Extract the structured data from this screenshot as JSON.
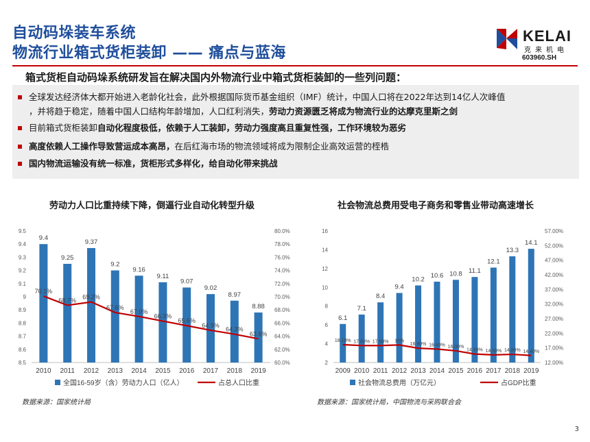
{
  "header": {
    "title_line1": "自动码垛装车系统",
    "title_line2": "物流行业箱式货柜装卸 —— 痛点与蓝海",
    "logo_text": "KELAI",
    "logo_sub": "克来机电",
    "ticker": "603960.SH"
  },
  "intro": "箱式货柜自动码垛系统研发旨在解决国内外物流行业中箱式货柜装卸的一些列问题：",
  "bullets": [
    {
      "line1_a": "全球发达经济体大都开始进入老龄化社会，此外根据国际货币基金组织（IMF）统计，中国人口将在2022年达到14亿人次峰值",
      "line2_a": "，并将趋于稳定，随着中国人口结构年龄增加，人口红利消失，",
      "line2_b": "劳动力资源匮乏将成为物流行业的达摩克里斯之剑"
    },
    {
      "a": "目前箱式货柜装卸",
      "b": "自动化程度极低，依赖于人工装卸，劳动力强度高且重复性强，工作环境较为恶劣"
    },
    {
      "a": "高度依赖人工操作导致营运成本高昂，",
      "c": "在后红海市场的物流领域将成为限制企业高效运营的桎梏"
    },
    {
      "b": "国内物流运输没有统一标准，货柜形式多样化，给自动化带来挑战"
    }
  ],
  "colors": {
    "accent_blue": "#1f4e9c",
    "bar_blue": "#2e75b6",
    "line_red": "#c00000"
  },
  "chart_data": [
    {
      "type": "bar",
      "title": "劳动力人口比重持续下降，倒逼行业自动化转型升级",
      "categories": [
        "2010",
        "2011",
        "2012",
        "2013",
        "2014",
        "2015",
        "2016",
        "2017",
        "2018",
        "2019"
      ],
      "series": [
        {
          "name": "全国16-59岁（含）劳动力人口（亿人）",
          "axis": "left",
          "kind": "bar",
          "values": [
            9.4,
            9.25,
            9.37,
            9.2,
            9.16,
            9.11,
            9.07,
            9.02,
            8.97,
            8.88
          ],
          "labels": [
            "9.4",
            "9.25",
            "9.37",
            "9.2",
            "9.16",
            "9.11",
            "9.07",
            "9.02",
            "8.97",
            "8.88"
          ]
        },
        {
          "name": "占总人口比重",
          "axis": "right",
          "kind": "line",
          "values": [
            70.1,
            68.7,
            69.2,
            67.6,
            67.0,
            66.3,
            65.6,
            64.9,
            64.3,
            63.6
          ],
          "labels": [
            "70.1%",
            "68.7%",
            "69.2%",
            "67.6%",
            "67.0%",
            "66.3%",
            "65.6%",
            "64.9%",
            "64.3%",
            "63.6%"
          ]
        }
      ],
      "y_left": {
        "min": 8.5,
        "max": 9.5,
        "ticks": [
          "8.5",
          "8.6",
          "8.7",
          "8.8",
          "8.9",
          "9",
          "9.1",
          "9.2",
          "9.3",
          "9.4",
          "9.5"
        ]
      },
      "y_right": {
        "min": 60,
        "max": 80,
        "ticks": [
          "60.0%",
          "62.0%",
          "64.0%",
          "66.0%",
          "68.0%",
          "70.0%",
          "72.0%",
          "74.0%",
          "76.0%",
          "78.0%",
          "80.0%"
        ]
      },
      "legend": "bottom",
      "source": "数据来源：国家统计局"
    },
    {
      "type": "bar",
      "title": "社会物流总费用受电子商务和零售业带动高速增长",
      "categories": [
        "2009",
        "2010",
        "2011",
        "2012",
        "2013",
        "2014",
        "2015",
        "2016",
        "2017",
        "2018",
        "2019"
      ],
      "series": [
        {
          "name": "社会物流总费用（万亿元）",
          "axis": "left",
          "kind": "bar",
          "values": [
            6.1,
            7.1,
            8.4,
            9.4,
            10.2,
            10.6,
            10.8,
            11.1,
            12.1,
            13.3,
            14.1
          ],
          "labels": [
            "6.1",
            "7.1",
            "8.4",
            "9.4",
            "10.2",
            "10.6",
            "10.8",
            "11.1",
            "12.1",
            "13.3",
            "14.1"
          ]
        },
        {
          "name": "占GDP比重",
          "axis": "right",
          "kind": "line",
          "values": [
            18.1,
            17.8,
            17.8,
            18.0,
            16.9,
            16.6,
            16.0,
            14.9,
            14.6,
            14.8,
            14.4
          ],
          "labels": [
            "18.10%",
            "17.80%",
            "17.80%",
            "18%",
            "16.90%",
            "16.60%",
            "16.00%",
            "14.90%",
            "14.60%",
            "14.80%",
            "14.40%"
          ]
        }
      ],
      "y_left": {
        "min": 2,
        "max": 16,
        "ticks": [
          "2",
          "4",
          "6",
          "8",
          "10",
          "12",
          "14",
          "16"
        ]
      },
      "y_right": {
        "min": 12,
        "max": 57,
        "ticks": [
          "12.00%",
          "17.00%",
          "22.00%",
          "27.00%",
          "32.00%",
          "37.00%",
          "42.00%",
          "47.00%",
          "52.00%",
          "57.00%"
        ]
      },
      "legend": "bottom",
      "source": "数据来源：国家统计局，中国物流与采购联合会"
    }
  ],
  "page_number": "3"
}
